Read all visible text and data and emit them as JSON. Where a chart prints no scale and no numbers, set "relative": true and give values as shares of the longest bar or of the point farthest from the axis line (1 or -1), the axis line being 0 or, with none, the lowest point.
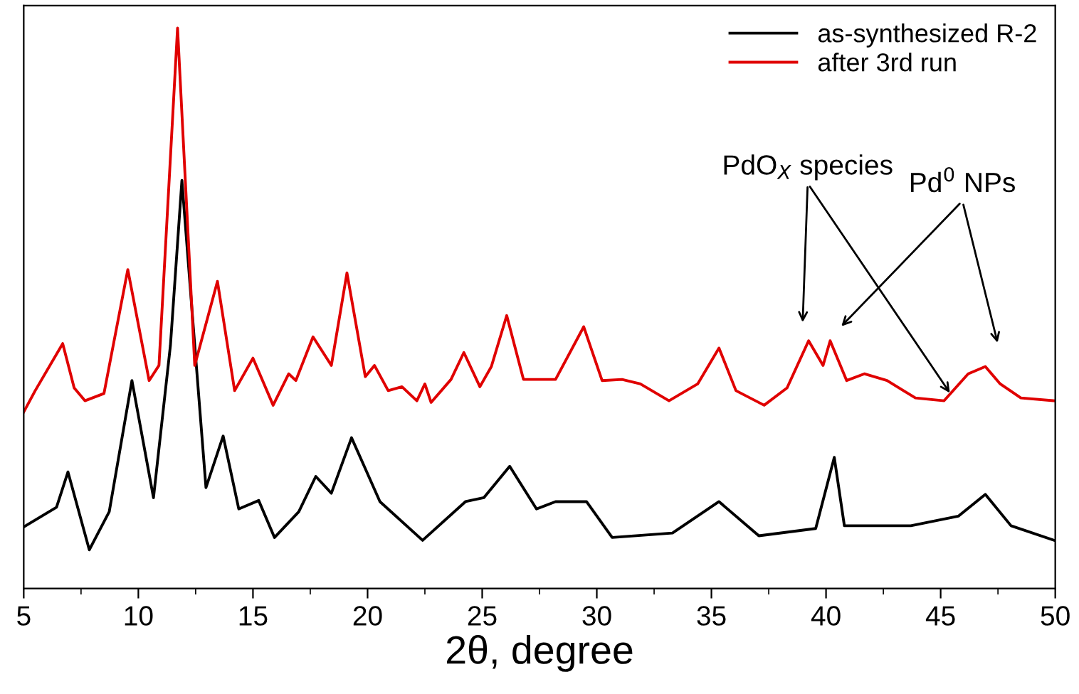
{
  "chart_data": {
    "type": "line",
    "relative": true,
    "xlabel": "2θ, degree",
    "xlim": [
      5,
      50
    ],
    "xticks": [
      5,
      10,
      15,
      20,
      25,
      30,
      35,
      40,
      45,
      50
    ],
    "legend": "top right",
    "grid": false,
    "marker": "none",
    "line_style": "solid",
    "tick_labels": "x",
    "annotations": [
      "PdO$_{X}$ species",
      "Pd$^{0}$ NPs"
    ],
    "series": [
      {
        "name": "as-synthesized R-2",
        "color": "#000000",
        "x": [
          5.0,
          6.43,
          6.93,
          7.86,
          8.73,
          9.72,
          10.66,
          11.4,
          11.9,
          12.46,
          12.95,
          13.7,
          14.38,
          15.25,
          15.94,
          17.0,
          17.74,
          18.42,
          19.3,
          20.54,
          22.4,
          24.27,
          25.07,
          26.2,
          27.37,
          28.2,
          29.55,
          30.67,
          33.3,
          35.33,
          37.07,
          39.55,
          40.36,
          40.8,
          43.7,
          45.77,
          46.95,
          48.07,
          49.95
        ],
        "values": [
          0.11,
          0.145,
          0.208,
          0.069,
          0.137,
          0.371,
          0.162,
          0.434,
          0.728,
          0.434,
          0.18,
          0.272,
          0.142,
          0.157,
          0.091,
          0.137,
          0.2,
          0.17,
          0.269,
          0.155,
          0.086,
          0.155,
          0.162,
          0.218,
          0.142,
          0.155,
          0.155,
          0.091,
          0.099,
          0.155,
          0.094,
          0.107,
          0.234,
          0.112,
          0.112,
          0.129,
          0.168,
          0.112,
          0.086
        ]
      },
      {
        "name": "after 3rd run",
        "color": "#e00000",
        "x": [
          5.0,
          5.5,
          6.7,
          7.2,
          7.67,
          8.5,
          9.54,
          10.47,
          10.9,
          11.71,
          12.46,
          13.45,
          14.2,
          15.0,
          15.88,
          16.56,
          16.87,
          17.62,
          18.42,
          19.1,
          19.9,
          20.3,
          20.9,
          21.5,
          22.15,
          22.5,
          22.77,
          23.64,
          24.2,
          24.9,
          25.4,
          26.07,
          26.8,
          27.75,
          28.2,
          29.43,
          30.23,
          31.1,
          31.9,
          33.15,
          34.4,
          35.33,
          36.07,
          37.3,
          38.3,
          39.24,
          39.87,
          40.18,
          40.9,
          41.67,
          42.66,
          43.9,
          45.15,
          46.2,
          46.95,
          47.6,
          48.5,
          49.95
        ],
        "values": [
          0.315,
          0.353,
          0.437,
          0.358,
          0.335,
          0.348,
          0.569,
          0.371,
          0.398,
          1.0,
          0.398,
          0.548,
          0.353,
          0.411,
          0.327,
          0.383,
          0.371,
          0.449,
          0.398,
          0.563,
          0.378,
          0.398,
          0.353,
          0.36,
          0.335,
          0.365,
          0.332,
          0.373,
          0.421,
          0.36,
          0.396,
          0.487,
          0.373,
          0.373,
          0.373,
          0.467,
          0.371,
          0.373,
          0.365,
          0.335,
          0.365,
          0.429,
          0.353,
          0.327,
          0.358,
          0.442,
          0.398,
          0.442,
          0.371,
          0.383,
          0.371,
          0.34,
          0.335,
          0.383,
          0.396,
          0.365,
          0.34,
          0.335
        ]
      }
    ]
  }
}
